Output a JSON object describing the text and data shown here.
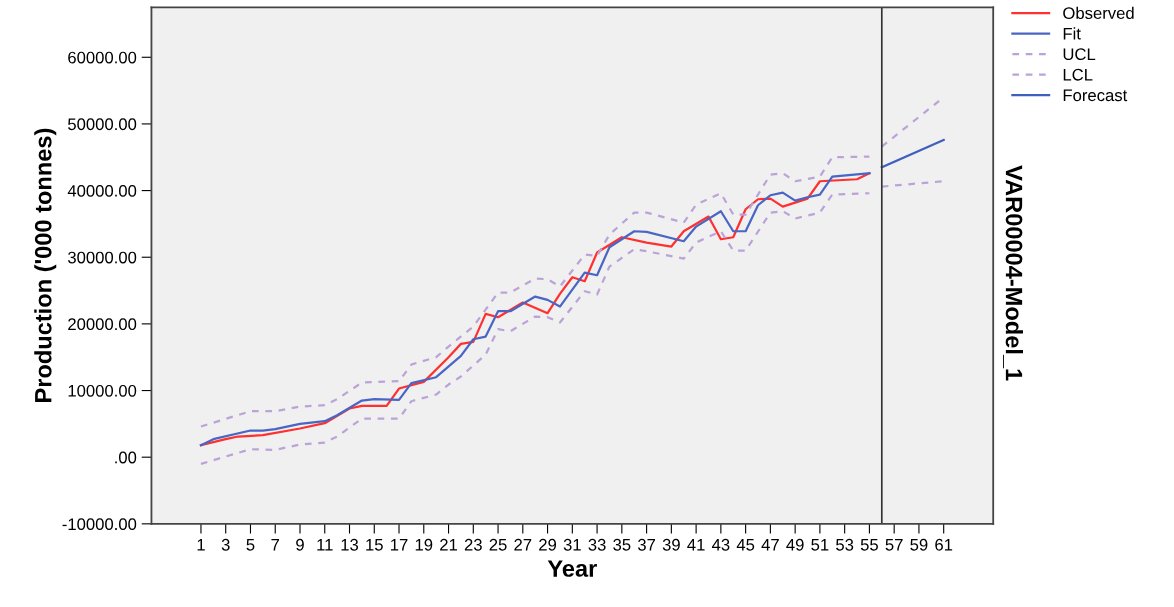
{
  "chart_data": {
    "type": "line",
    "xlabel": "Year",
    "ylabel": "Production ('000 tonnes)",
    "annotations": [
      "VAR00004-Model_1"
    ],
    "xlim": [
      -3,
      65
    ],
    "xticks": [
      1,
      3,
      5,
      7,
      9,
      11,
      13,
      15,
      17,
      19,
      21,
      23,
      25,
      27,
      29,
      31,
      33,
      35,
      37,
      39,
      41,
      43,
      45,
      47,
      49,
      51,
      53,
      55,
      57,
      59,
      61
    ],
    "ylim": [
      -10000,
      67500
    ],
    "yticks": [
      {
        "value": -10000,
        "label": "-10000.00"
      },
      {
        "value": 0,
        "label": ".00"
      },
      {
        "value": 10000,
        "label": "10000.00"
      },
      {
        "value": 20000,
        "label": "20000.00"
      },
      {
        "value": 30000,
        "label": "30000.00"
      },
      {
        "value": 40000,
        "label": "40000.00"
      },
      {
        "value": 50000,
        "label": "50000.00"
      },
      {
        "value": 60000,
        "label": "60000.00"
      }
    ],
    "grid": false,
    "legend": "top right",
    "marker": "none",
    "ref_lines": [
      {
        "axis": "x",
        "value": 56,
        "color": "#333333",
        "line_style": "solid"
      }
    ],
    "series": [
      {
        "name": "Observed",
        "color": "#ff3030",
        "line_style": "solid",
        "x": [
          1,
          3,
          4,
          6,
          9,
          11,
          13,
          14,
          16,
          17,
          19,
          21,
          22,
          23,
          24,
          25,
          27,
          29,
          30,
          31,
          32,
          33,
          35,
          37,
          39,
          40,
          42,
          43,
          44,
          45,
          46,
          47,
          48,
          50,
          51,
          54,
          55
        ],
        "values": [
          1800,
          2700,
          3100,
          3300,
          4300,
          5100,
          7300,
          7700,
          7700,
          10300,
          11300,
          15000,
          17000,
          17300,
          21500,
          21000,
          23200,
          21600,
          24500,
          27000,
          26400,
          30700,
          33000,
          32200,
          31600,
          33900,
          36100,
          32700,
          33000,
          37200,
          38700,
          38800,
          37600,
          38800,
          41400,
          41700,
          42600
        ]
      },
      {
        "name": "Fit",
        "color": "#4a66c4",
        "line_style": "solid",
        "x": [
          1,
          2,
          5,
          6,
          7,
          9,
          11,
          12,
          14,
          15,
          17,
          18,
          20,
          22,
          23,
          24,
          25,
          26,
          28,
          29,
          30,
          32,
          33,
          34,
          36,
          37,
          40,
          41,
          43,
          44,
          45,
          46,
          47,
          48,
          49,
          50,
          51,
          52,
          55
        ],
        "values": [
          1800,
          2700,
          4000,
          4000,
          4200,
          5000,
          5400,
          6300,
          8500,
          8700,
          8600,
          11100,
          12000,
          15200,
          17700,
          18100,
          21900,
          21900,
          24100,
          23600,
          22600,
          27700,
          27300,
          31500,
          33900,
          33800,
          32400,
          34600,
          36900,
          33900,
          33900,
          37800,
          39300,
          39700,
          38500,
          39000,
          39400,
          42100,
          42600
        ]
      },
      {
        "name": "UCL",
        "color": "#bba3d8",
        "line_style": "dashed",
        "x": [
          1,
          5,
          7,
          9,
          11,
          12,
          14,
          17,
          18,
          20,
          21,
          23,
          25,
          26,
          28,
          29,
          30,
          32,
          33,
          34,
          36,
          37,
          40,
          41,
          43,
          44,
          45,
          47,
          48,
          49,
          51,
          52,
          55
        ],
        "values": [
          4600,
          6900,
          6900,
          7600,
          7800,
          8700,
          11200,
          11400,
          13900,
          15000,
          16600,
          19600,
          24700,
          24700,
          26800,
          26700,
          25600,
          30400,
          30200,
          33400,
          36700,
          36700,
          35200,
          37900,
          39600,
          36400,
          36400,
          42400,
          42600,
          41400,
          42100,
          45000,
          45100
        ]
      },
      {
        "name": "LCL",
        "color": "#bba3d8",
        "line_style": "dashed",
        "x": [
          1,
          5,
          7,
          9,
          11,
          12,
          14,
          17,
          18,
          20,
          21,
          22,
          24,
          25,
          26,
          28,
          29,
          30,
          32,
          33,
          34,
          36,
          37,
          40,
          41,
          43,
          44,
          45,
          47,
          48,
          49,
          51,
          52,
          55
        ],
        "values": [
          -1000,
          1200,
          1100,
          1900,
          2200,
          3100,
          5800,
          5800,
          8400,
          9400,
          10900,
          12100,
          15400,
          19200,
          18900,
          21100,
          21000,
          20200,
          24900,
          24400,
          28600,
          31200,
          30900,
          29800,
          32200,
          33900,
          31000,
          31000,
          36700,
          36900,
          35800,
          36700,
          39400,
          39600
        ]
      },
      {
        "name": "Forecast",
        "color": "#3f5fbf",
        "line_style": "solid",
        "x": [
          56,
          61
        ],
        "values": [
          43500,
          47600
        ]
      },
      {
        "color": "#bba3d8",
        "line_style": "dashed",
        "x": [
          56,
          61
        ],
        "values": [
          46600,
          54000
        ]
      },
      {
        "color": "#bba3d8",
        "line_style": "dashed",
        "x": [
          56,
          61
        ],
        "values": [
          40600,
          41400
        ]
      }
    ]
  }
}
